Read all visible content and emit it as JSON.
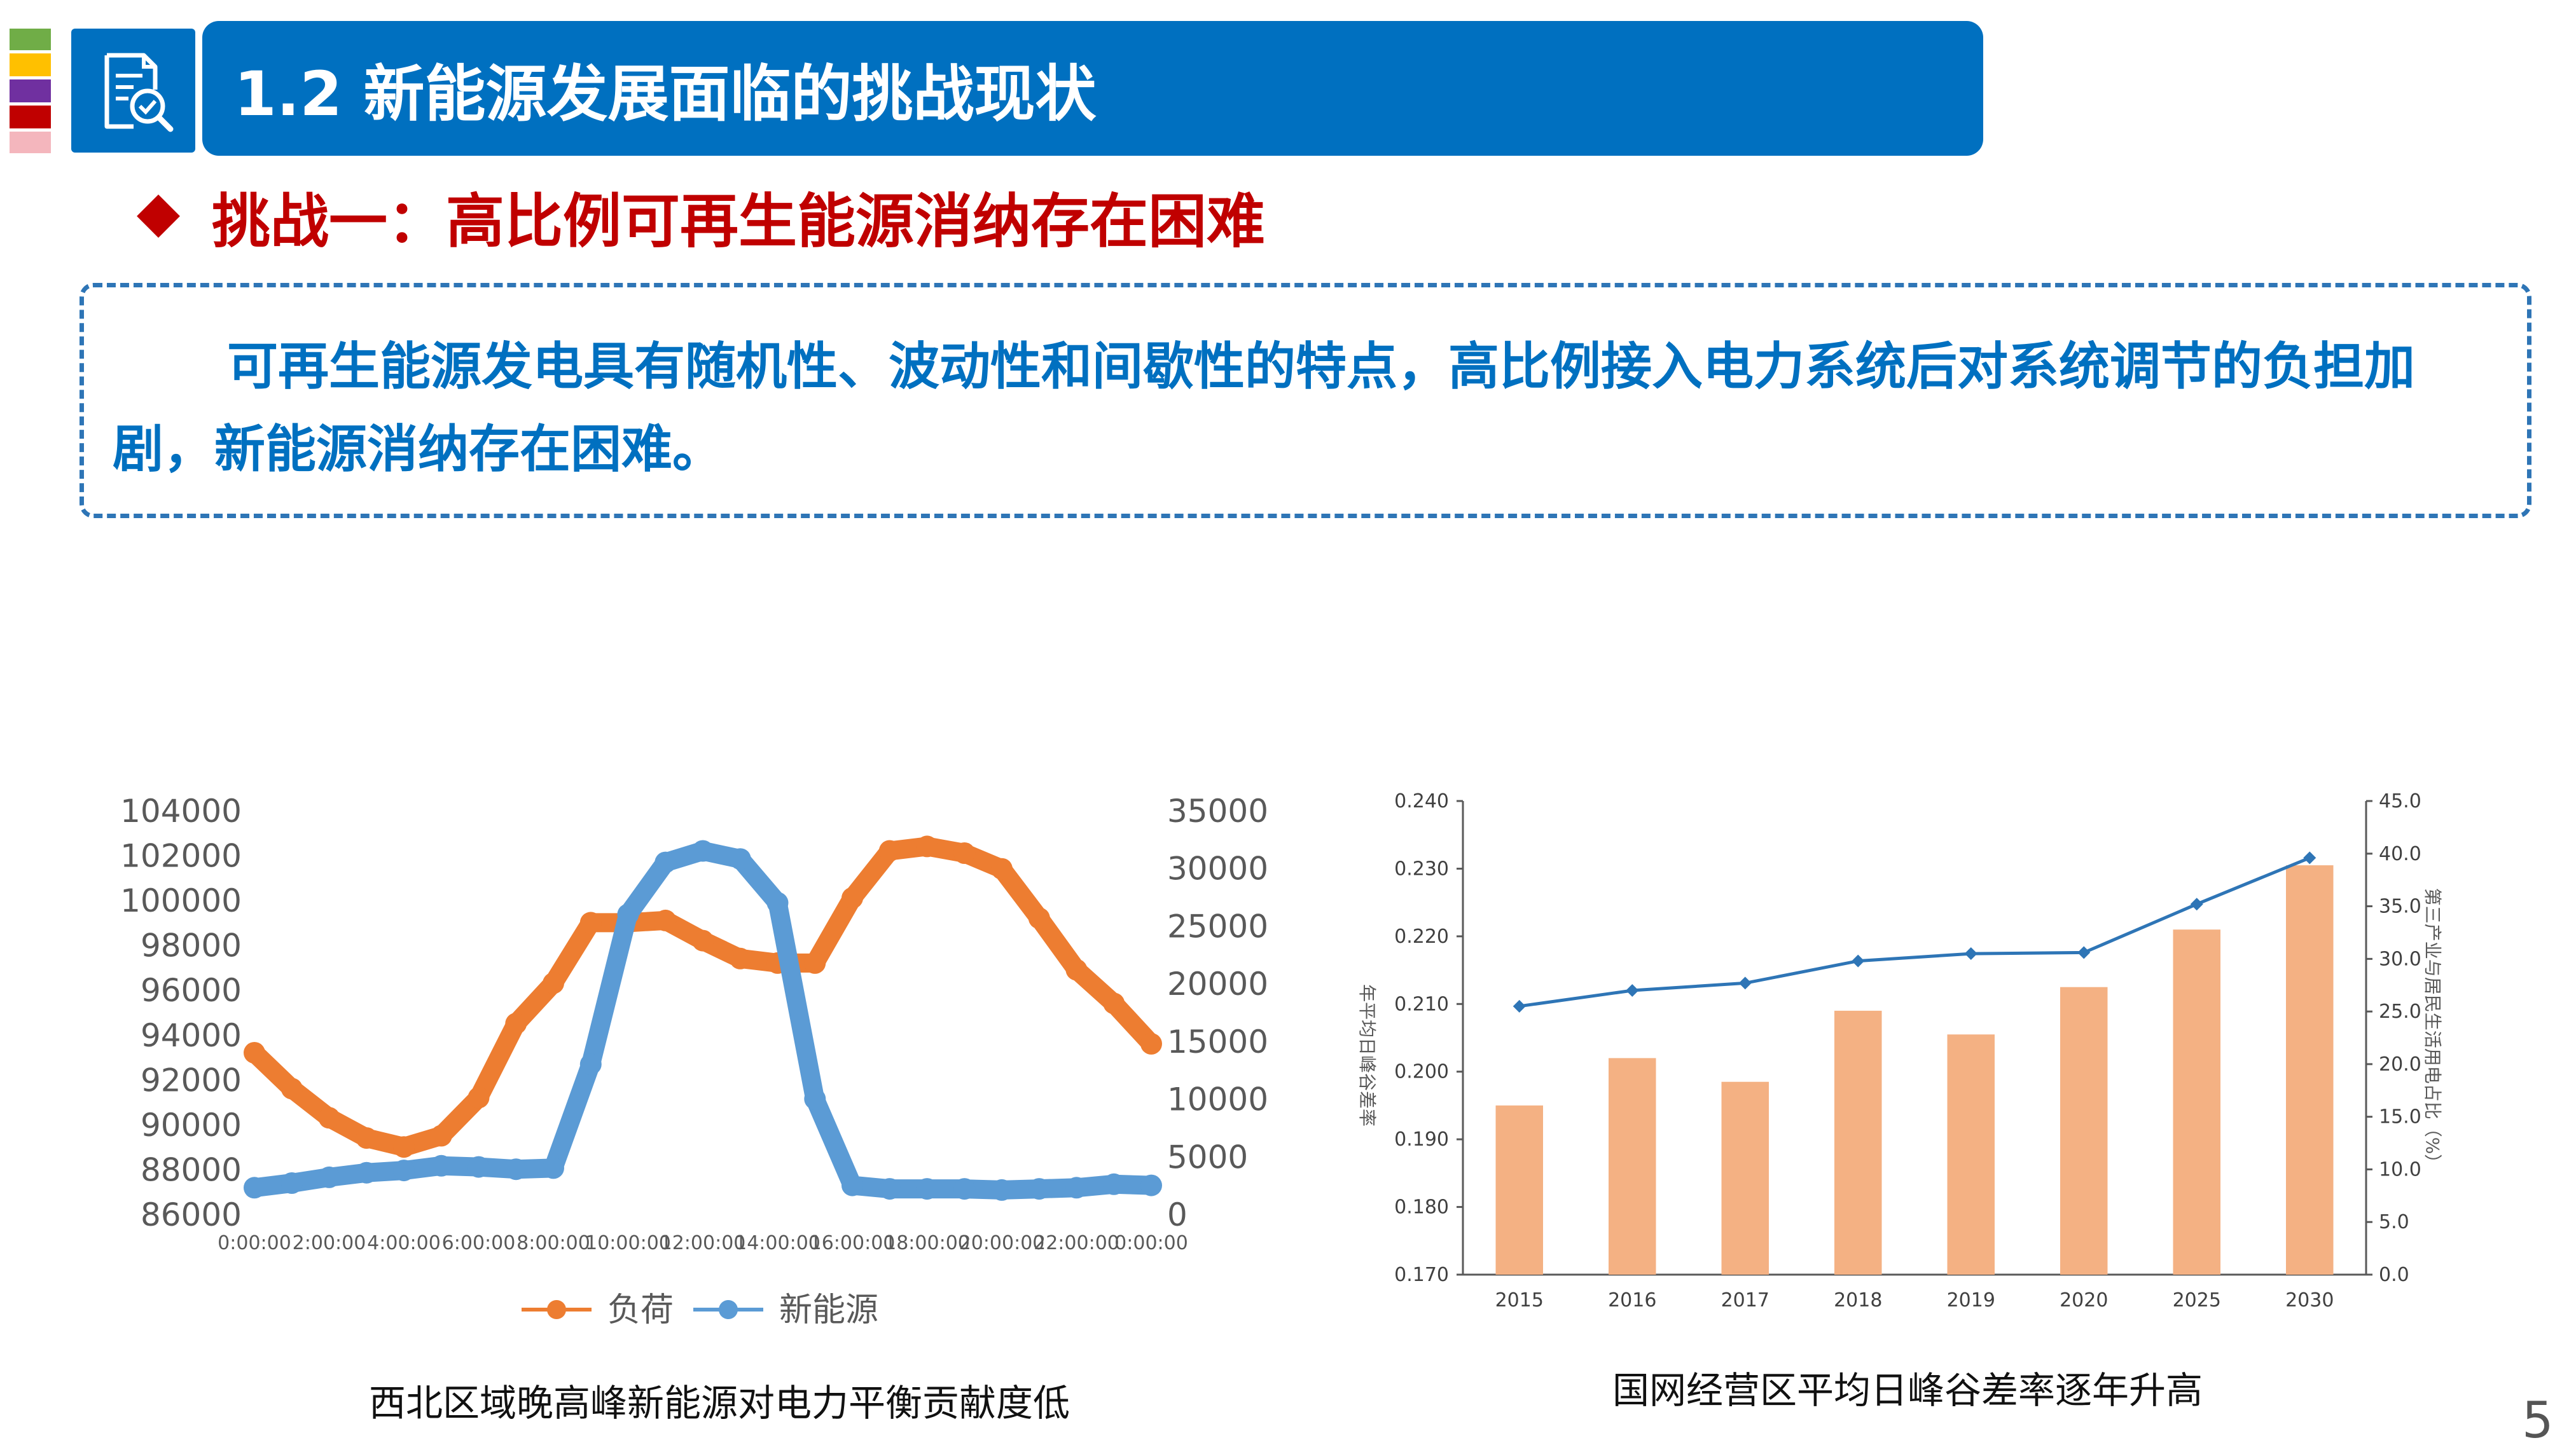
{
  "header": {
    "title": "1.2 新能源发展面临的挑战现状",
    "icon": "search-document-icon",
    "side_colors": [
      "#70ad47",
      "#ffc000",
      "#7030a0",
      "#c00000",
      "#f4b6bd"
    ]
  },
  "subtitle": "挑战一：高比例可再生能源消纳存在困难",
  "intro_text": "可再生能源发电具有随机性、波动性和间歇性的特点，高比例接入电力系统后对系统调节的负担加剧，新能源消纳存在困难。",
  "left_chart": {
    "caption": "西北区域晚高峰新能源对电力平衡贡献度低",
    "chart_data": {
      "type": "line",
      "y_left_ticks": [
        "104000",
        "102000",
        "100000",
        "98000",
        "96000",
        "94000",
        "92000",
        "90000",
        "88000",
        "86000"
      ],
      "y_left_range": [
        86000,
        104000
      ],
      "y_right_ticks": [
        "35000",
        "30000",
        "25000",
        "20000",
        "15000",
        "10000",
        "5000",
        "0"
      ],
      "y_right_range": [
        0,
        35000
      ],
      "x_tick_labels": [
        "0:00:00",
        "2:00:00",
        "4:00:00",
        "6:00:00",
        "8:00:00",
        "10:00:00",
        "12:00:00",
        "14:00:00",
        "16:00:00",
        "18:00:00",
        "20:00:00",
        "22:00:00",
        "0:00:00"
      ],
      "x": [
        0,
        1,
        2,
        3,
        4,
        5,
        6,
        7,
        8,
        9,
        10,
        11,
        12,
        13,
        14,
        15,
        16,
        17,
        18,
        19,
        20,
        21,
        22,
        23,
        24
      ],
      "series": [
        {
          "name": "负荷",
          "axis": "left",
          "color": "#ed7d31",
          "values": [
            93200,
            91600,
            90300,
            89400,
            89000,
            89500,
            91200,
            94500,
            96300,
            99000,
            99000,
            99100,
            98200,
            97400,
            97200,
            97200,
            100100,
            102200,
            102400,
            102100,
            101400,
            99200,
            96900,
            95400,
            93600
          ]
        },
        {
          "name": "新能源",
          "axis": "right",
          "color": "#5b9bd5",
          "values": [
            2300,
            2700,
            3200,
            3600,
            3800,
            4200,
            4100,
            3900,
            4000,
            13000,
            26000,
            30500,
            31500,
            30800,
            27000,
            10000,
            2500,
            2200,
            2200,
            2200,
            2100,
            2200,
            2300,
            2600,
            2500
          ]
        }
      ],
      "legend": "bottom"
    }
  },
  "right_chart": {
    "caption": "国网经营区平均日峰谷差率逐年升高",
    "chart_data": {
      "type": "bar",
      "categories": [
        "2015",
        "2016",
        "2017",
        "2018",
        "2019",
        "2020",
        "2025",
        "2030"
      ],
      "ylabel_left": "年平均日峰谷差率",
      "ylabel_right": "第三产业与居民生活用电占比（%）",
      "y_left_ticks": [
        "0.240",
        "0.230",
        "0.220",
        "0.210",
        "0.200",
        "0.190",
        "0.180",
        "0.170"
      ],
      "y_left_range": [
        0.17,
        0.24
      ],
      "y_right_ticks": [
        "45.0",
        "40.0",
        "35.0",
        "30.0",
        "25.0",
        "20.0",
        "15.0",
        "10.0",
        "5.0",
        "0.0"
      ],
      "y_right_range": [
        0,
        45
      ],
      "series": [
        {
          "axis": "left",
          "type": "bar",
          "color": "#f4b183",
          "values": [
            0.195,
            0.202,
            0.1985,
            0.209,
            0.2055,
            0.2125,
            0.221,
            0.2305
          ]
        },
        {
          "axis": "right",
          "type": "line",
          "color": "#2e75b6",
          "values": [
            25.5,
            27.0,
            27.7,
            29.8,
            30.5,
            30.6,
            35.2,
            39.6
          ]
        }
      ]
    }
  },
  "page_number": "5"
}
